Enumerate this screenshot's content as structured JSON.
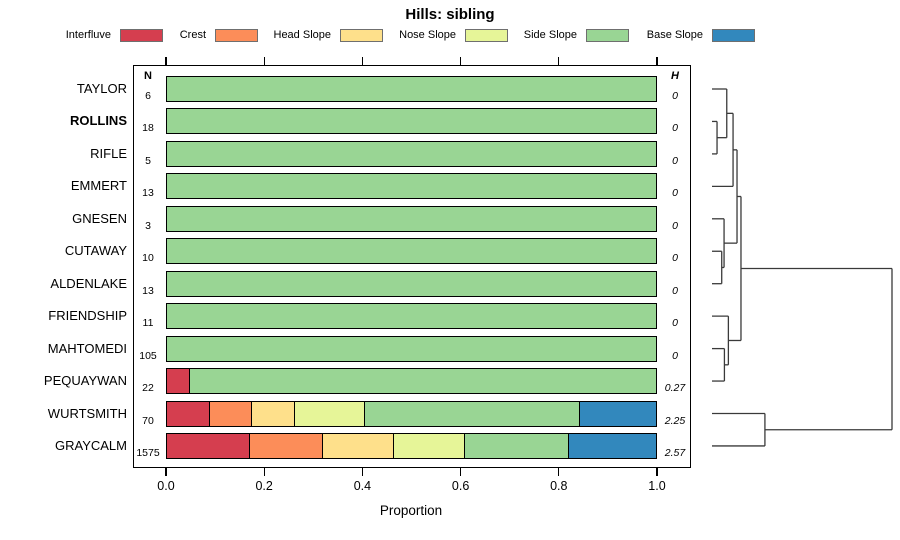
{
  "title": "Hills: sibling",
  "columns": {
    "n_header": "N",
    "h_header": "H"
  },
  "axis": {
    "label": "Proportion",
    "tick_labels": [
      "0.0",
      "0.2",
      "0.4",
      "0.6",
      "0.8",
      "1.0"
    ],
    "tick_values": [
      0,
      0.2,
      0.4,
      0.6,
      0.8,
      1.0
    ]
  },
  "legend": [
    {
      "label": "Interfluve",
      "color": "#D53E4F"
    },
    {
      "label": "Crest",
      "color": "#FC8D59"
    },
    {
      "label": "Head Slope",
      "color": "#FEE08B"
    },
    {
      "label": "Nose Slope",
      "color": "#E6F598"
    },
    {
      "label": "Side Slope",
      "color": "#99D594"
    },
    {
      "label": "Base Slope",
      "color": "#3288BD"
    }
  ],
  "chart_data": {
    "type": "bar",
    "subtype": "horizontal-stacked-with-dendrogram",
    "title": "Hills: sibling",
    "xlabel": "Proportion",
    "xlim": [
      0,
      1
    ],
    "grid": false,
    "series_names": [
      "Interfluve",
      "Crest",
      "Head Slope",
      "Nose Slope",
      "Side Slope",
      "Base Slope"
    ],
    "palette": [
      "#D53E4F",
      "#FC8D59",
      "#FEE08B",
      "#E6F598",
      "#99D594",
      "#3288BD"
    ],
    "rows": [
      {
        "label": "TAYLOR",
        "n": "6",
        "h": "0",
        "bold": false,
        "proportions": [
          0,
          0,
          0,
          0,
          1,
          0
        ]
      },
      {
        "label": "ROLLINS",
        "n": "18",
        "h": "0",
        "bold": true,
        "proportions": [
          0,
          0,
          0,
          0,
          1,
          0
        ]
      },
      {
        "label": "RIFLE",
        "n": "5",
        "h": "0",
        "bold": false,
        "proportions": [
          0,
          0,
          0,
          0,
          1,
          0
        ]
      },
      {
        "label": "EMMERT",
        "n": "13",
        "h": "0",
        "bold": false,
        "proportions": [
          0,
          0,
          0,
          0,
          1,
          0
        ]
      },
      {
        "label": "GNESEN",
        "n": "3",
        "h": "0",
        "bold": false,
        "proportions": [
          0,
          0,
          0,
          0,
          1,
          0
        ]
      },
      {
        "label": "CUTAWAY",
        "n": "10",
        "h": "0",
        "bold": false,
        "proportions": [
          0,
          0,
          0,
          0,
          1,
          0
        ]
      },
      {
        "label": "ALDENLAKE",
        "n": "13",
        "h": "0",
        "bold": false,
        "proportions": [
          0,
          0,
          0,
          0,
          1,
          0
        ]
      },
      {
        "label": "FRIENDSHIP",
        "n": "11",
        "h": "0",
        "bold": false,
        "proportions": [
          0,
          0,
          0,
          0,
          1,
          0
        ]
      },
      {
        "label": "MAHTOMEDI",
        "n": "105",
        "h": "0",
        "bold": false,
        "proportions": [
          0,
          0,
          0,
          0,
          1,
          0
        ]
      },
      {
        "label": "PEQUAYWAN",
        "n": "22",
        "h": "0.27",
        "bold": false,
        "proportions": [
          0.045,
          0,
          0,
          0,
          0.955,
          0
        ]
      },
      {
        "label": "WURTSMITH",
        "n": "70",
        "h": "2.25",
        "bold": false,
        "proportions": [
          0.086,
          0.086,
          0.086,
          0.143,
          0.443,
          0.157
        ]
      },
      {
        "label": "GRAYCALM",
        "n": "1575",
        "h": "2.57",
        "bold": false,
        "proportions": [
          0.169,
          0.149,
          0.144,
          0.146,
          0.212,
          0.18
        ]
      }
    ],
    "dendrogram": {
      "leaf_order": [
        "TAYLOR",
        "ROLLINS",
        "RIFLE",
        "EMMERT",
        "GNESEN",
        "CUTAWAY",
        "ALDENLAKE",
        "FRIENDSHIP",
        "MAHTOMEDI",
        "PEQUAYWAN",
        "WURTSMITH",
        "GRAYCALM"
      ],
      "merges": [
        [
          "L1",
          "L2",
          0.028
        ],
        [
          "L5",
          "L6",
          0.054
        ],
        [
          "L4",
          "M1",
          0.067
        ],
        [
          "L8",
          "L9",
          0.069
        ],
        [
          "L0",
          "M0",
          0.082
        ],
        [
          "L7",
          "M3",
          0.091
        ],
        [
          "M4",
          "L3",
          0.117
        ],
        [
          "M6",
          "M2",
          0.139
        ],
        [
          "M7",
          "M5",
          0.161
        ],
        [
          "L10",
          "L11",
          0.294
        ],
        [
          "M8",
          "M9",
          1.0
        ]
      ]
    }
  }
}
